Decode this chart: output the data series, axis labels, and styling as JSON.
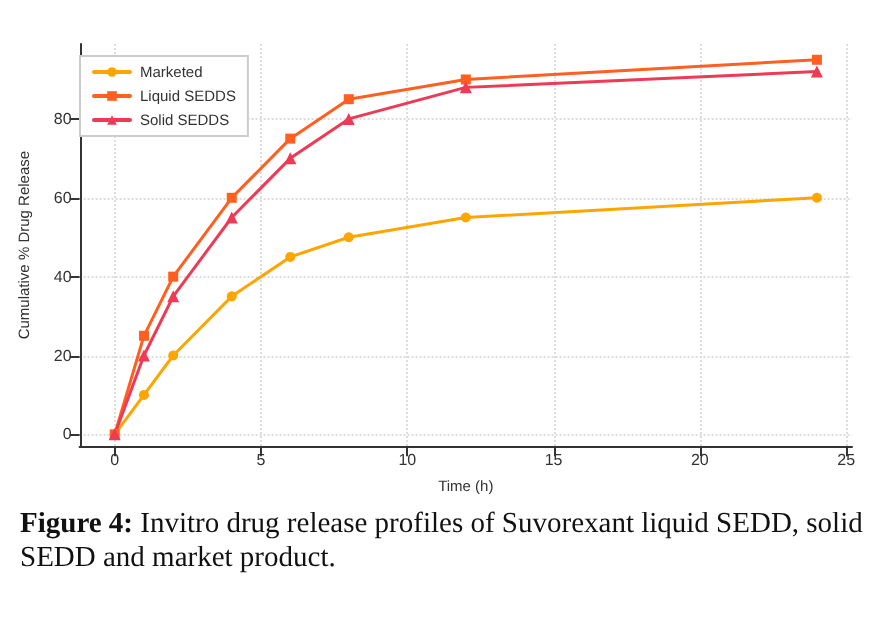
{
  "chart_data": {
    "type": "line",
    "xlabel": "Time (h)",
    "ylabel": "Cumulative % Drug Release",
    "x": [
      0,
      1,
      2,
      4,
      6,
      8,
      12,
      24
    ],
    "series": [
      {
        "name": "Marketed",
        "color": "#ffa500",
        "marker": "circle",
        "values": [
          0,
          10,
          20,
          35,
          45,
          50,
          55,
          60
        ]
      },
      {
        "name": "Liquid SEDDS",
        "color": "#ff5f1f",
        "marker": "square",
        "values": [
          0,
          25,
          40,
          60,
          75,
          85,
          90,
          95
        ]
      },
      {
        "name": "Solid SEDDS",
        "color": "#ee3a55",
        "marker": "triangle",
        "values": [
          0,
          20,
          35,
          55,
          70,
          80,
          88,
          92
        ]
      }
    ],
    "xlim": [
      -1.2,
      25.2
    ],
    "xticks": [
      0,
      5,
      10,
      15,
      20,
      25
    ],
    "ylim": [
      -3,
      99
    ],
    "yticks": [
      0,
      20,
      40,
      60,
      80
    ],
    "grid": true,
    "legend": "top left",
    "line_style": "solid",
    "annotations": [
      "Figure 4: Invitro drug release profiles of Suvorexant liquid SEDD, solid SEDD and market product."
    ]
  }
}
